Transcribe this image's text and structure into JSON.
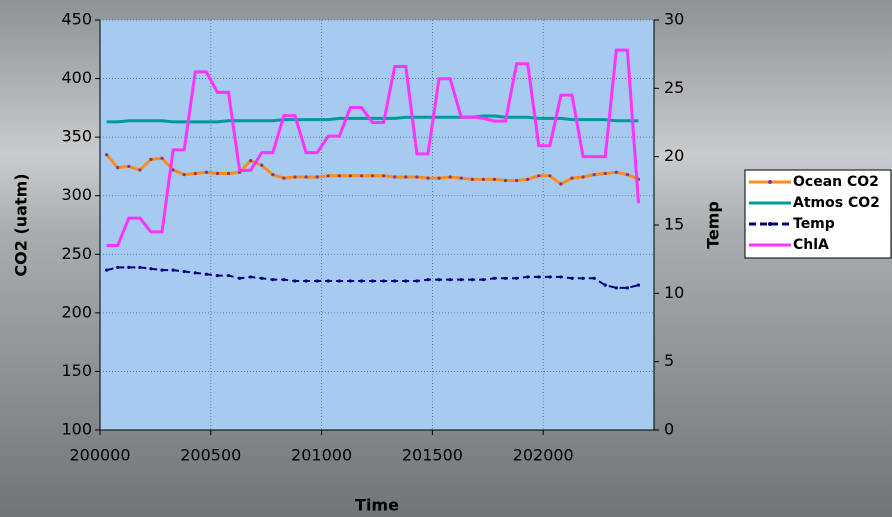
{
  "chart_data": {
    "type": "line",
    "xlabel": "Time",
    "ylabel": "CO2 (uatm)",
    "y2label": "Temp",
    "x": [
      200030,
      200080,
      200130,
      200180,
      200230,
      200280,
      200330,
      200380,
      200430,
      200480,
      200530,
      200580,
      200630,
      200680,
      200730,
      200780,
      200830,
      200880,
      200930,
      200980,
      201030,
      201080,
      201130,
      201180,
      201230,
      201280,
      201330,
      201380,
      201430,
      201480,
      201530,
      201580,
      201630,
      201680,
      201730,
      201780,
      201830,
      201880,
      201930,
      201980,
      202030,
      202080,
      202130,
      202180,
      202230,
      202280,
      202330,
      202380,
      202430
    ],
    "xlim": [
      200000,
      202500
    ],
    "xticks": [
      200000,
      200500,
      201000,
      201500,
      202000
    ],
    "ylim": [
      100,
      450
    ],
    "yticks": [
      100,
      150,
      200,
      250,
      300,
      350,
      400,
      450
    ],
    "y2lim": [
      0,
      30
    ],
    "y2ticks": [
      0,
      5,
      10,
      15,
      20,
      25,
      30
    ],
    "grid": true,
    "legend": "right",
    "series": [
      {
        "name": "Ocean CO2",
        "color": "#ff8c1a",
        "marker_color": "#7a3a8c",
        "values": [
          335,
          324,
          325,
          322,
          331,
          332,
          322,
          318,
          319,
          320,
          319,
          319,
          320,
          330,
          326,
          318,
          315,
          316,
          316,
          316,
          317,
          317,
          317,
          317,
          317,
          317,
          316,
          316,
          316,
          315,
          315,
          316,
          315,
          314,
          314,
          314,
          313,
          313,
          314,
          317,
          317,
          310,
          315,
          316,
          318,
          319,
          320,
          318,
          314
        ]
      },
      {
        "name": "Atmos CO2",
        "color": "#009999",
        "values": [
          363,
          363,
          364,
          364,
          364,
          364,
          363,
          363,
          363,
          363,
          363,
          364,
          364,
          364,
          364,
          364,
          365,
          365,
          365,
          365,
          365,
          366,
          366,
          366,
          366,
          366,
          366,
          367,
          367,
          367,
          367,
          367,
          367,
          367,
          368,
          368,
          367,
          367,
          367,
          366,
          366,
          366,
          365,
          365,
          365,
          365,
          364,
          364,
          364
        ]
      },
      {
        "name": "Temp",
        "color": "#000080",
        "axis": "y2",
        "dashed": true,
        "values": [
          11.7,
          11.9,
          11.9,
          11.9,
          11.8,
          11.7,
          11.7,
          11.6,
          11.5,
          11.4,
          11.3,
          11.3,
          11.1,
          11.2,
          11.1,
          11.0,
          11.0,
          10.9,
          10.9,
          10.9,
          10.9,
          10.9,
          10.9,
          10.9,
          10.9,
          10.9,
          10.9,
          10.9,
          10.9,
          11.0,
          11.0,
          11.0,
          11.0,
          11.0,
          11.0,
          11.1,
          11.1,
          11.1,
          11.2,
          11.2,
          11.2,
          11.2,
          11.1,
          11.1,
          11.1,
          10.6,
          10.4,
          10.4,
          10.6
        ]
      },
      {
        "name": "ChlA",
        "color": "#ff33ff",
        "axis": "y2",
        "values": [
          13.5,
          13.5,
          15.5,
          15.5,
          14.5,
          14.5,
          20.5,
          20.5,
          26.2,
          26.2,
          24.7,
          24.7,
          19,
          19,
          20.3,
          20.3,
          23,
          23,
          20.3,
          20.3,
          21.5,
          21.5,
          23.6,
          23.6,
          22.5,
          22.5,
          26.6,
          26.6,
          20.2,
          20.2,
          25.7,
          25.7,
          22.9,
          22.9,
          22.8,
          22.6,
          22.6,
          26.8,
          26.8,
          20.8,
          20.8,
          24.5,
          24.5,
          20,
          20,
          20,
          27.8,
          27.8,
          16.6
        ]
      }
    ]
  }
}
